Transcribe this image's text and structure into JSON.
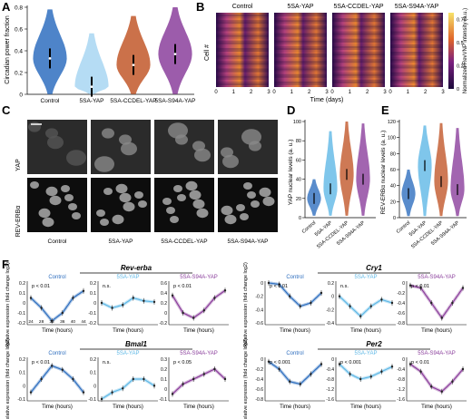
{
  "panels": {
    "A": {
      "letter": "A",
      "ylabel": "Circadian power fraction",
      "yticks": [
        "0",
        "0.2",
        "0.4",
        "0.6",
        "0.8"
      ],
      "groups": [
        "Control",
        "5SA-YAP",
        "5SA-CCDEL-YAP",
        "5SA-S94A-YAP"
      ],
      "colors": [
        "#2f6fbf",
        "#a8d6f2",
        "#c2582a",
        "#8b3f9c"
      ]
    },
    "B": {
      "letter": "B",
      "titles": [
        "Control",
        "5SA-YAP",
        "5SA-CCDEL-YAP",
        "5SA-S94A-YAP"
      ],
      "ylabel": "Cell #",
      "xlabel": "Time (days)",
      "xticks": [
        "0",
        "1",
        "2",
        "3"
      ],
      "colorbar_label": "Normalized RevVNP intensity (a.u.)",
      "colorbar_ticks": [
        "0",
        "0.25",
        "0.5",
        "0.75"
      ]
    },
    "C": {
      "letter": "C",
      "row_labels": [
        "YAP",
        "REV-ERBα"
      ],
      "col_labels": [
        "Control",
        "5SA-YAP",
        "5SA-CCDEL-YAP",
        "5SA-S94A-YAP"
      ]
    },
    "D": {
      "letter": "D",
      "ylabel": "YAP nuclear levels (a. u.)",
      "yticks": [
        "0",
        "20",
        "40",
        "60",
        "80",
        "100"
      ],
      "groups": [
        "Control",
        "5SA-YAP",
        "5SA-CCDEL-YAP",
        "5SA-S94A-YAP"
      ]
    },
    "E": {
      "letter": "E",
      "ylabel": "REV-ERBα nuclear levels (a. u.)",
      "yticks": [
        "0",
        "20",
        "40",
        "60",
        "80",
        "100",
        "120"
      ],
      "groups": [
        "Control",
        "5SA-YAP",
        "5SA-CCDEL-YAP",
        "5SA-S94A-YAP"
      ]
    },
    "F": {
      "letter": "F",
      "xlabel": "Time (hours)",
      "ylabel": "Relative expression (fold change log2)",
      "xticks_first": [
        "24",
        "28",
        "32",
        "36",
        "40",
        "44"
      ],
      "genes": [
        {
          "name": "Rev-erba",
          "panels": [
            {
              "title": "Control",
              "pvalue": "p < 0.01",
              "yticks": [
                "0.2",
                "0.1",
                "0",
                "-0.1",
                "-0.2"
              ]
            },
            {
              "title": "5SA-YAP",
              "pvalue": "n.s.",
              "yticks": [
                "0.2",
                "0.1",
                "0",
                "-0.1",
                "-0.2"
              ]
            },
            {
              "title": "5SA-S94A-YAP",
              "pvalue": "p < 0.01",
              "yticks": [
                "0.6",
                "0.4",
                "0.2",
                "0",
                "-0.2"
              ]
            }
          ]
        },
        {
          "name": "Cry1",
          "panels": [
            {
              "title": "Control",
              "pvalue": "p < 0.01",
              "yticks": [
                "0",
                "-0.2",
                "-0.4",
                "-0.6"
              ]
            },
            {
              "title": "5SA-YAP",
              "pvalue": "n.s.",
              "yticks": [
                "0.2",
                "0",
                "-0.2",
                "-0.4"
              ]
            },
            {
              "title": "5SA-S94A-YAP",
              "pvalue": "p < 0.01",
              "yticks": [
                "0",
                "-0.2",
                "-0.4",
                "-0.6",
                "-0.8"
              ]
            }
          ]
        },
        {
          "name": "Bmal1",
          "panels": [
            {
              "title": "Control",
              "pvalue": "p < 0.01",
              "yticks": [
                "0.2",
                "0.1",
                "0",
                "-0.1"
              ]
            },
            {
              "title": "5SA-YAP",
              "pvalue": "n.s.",
              "yticks": [
                "0.2",
                "0.1",
                "0",
                "-0.1"
              ]
            },
            {
              "title": "5SA-S94A-YAP",
              "pvalue": "p < 0.05",
              "yticks": [
                "0.3",
                "0.2",
                "0.1",
                "0",
                "-0.1"
              ]
            }
          ]
        },
        {
          "name": "Per2",
          "panels": [
            {
              "title": "Control",
              "pvalue": "p < 0.001",
              "yticks": [
                "0",
                "-0.2",
                "-0.4",
                "-0.6",
                "-0.8"
              ]
            },
            {
              "title": "5SA-YAP",
              "pvalue": "p < 0.001",
              "yticks": [
                "0",
                "-0.4",
                "-0.8",
                "-1.2",
                "-1.6"
              ]
            },
            {
              "title": "5SA-S94A-YAP",
              "pvalue": "p < 0.01",
              "yticks": [
                "0",
                "-0.4",
                "-0.8",
                "-1.2",
                "-1.6"
              ]
            }
          ]
        }
      ]
    }
  },
  "colors": {
    "control": "#2f6fbf",
    "yap5sa": "#5fb8e6",
    "ccdel": "#c2582a",
    "s94a": "#8b3f9c"
  },
  "chart_data": [
    {
      "type": "violin",
      "panel": "A",
      "categories": [
        "Control",
        "5SA-YAP",
        "5SA-CCDEL-YAP",
        "5SA-S94A-YAP"
      ],
      "medians": [
        0.33,
        0.07,
        0.27,
        0.37
      ],
      "ylim": [
        0,
        0.8
      ],
      "ylabel": "Circadian power fraction"
    },
    {
      "type": "violin",
      "panel": "D",
      "categories": [
        "Control",
        "5SA-YAP",
        "5SA-CCDEL-YAP",
        "5SA-S94A-YAP"
      ],
      "medians": [
        20,
        30,
        45,
        40
      ],
      "ylim": [
        0,
        100
      ],
      "ylabel": "YAP nuclear levels (a. u.)"
    },
    {
      "type": "violin",
      "panel": "E",
      "categories": [
        "Control",
        "5SA-YAP",
        "5SA-CCDEL-YAP",
        "5SA-S94A-YAP"
      ],
      "medians": [
        30,
        65,
        45,
        35
      ],
      "ylim": [
        0,
        120
      ],
      "ylabel": "REV-ERBα nuclear levels (a. u.)"
    },
    {
      "type": "line",
      "panel": "F",
      "x": [
        24,
        28,
        32,
        36,
        40,
        44
      ],
      "series": [
        {
          "name": "Rev-erba Control",
          "values": [
            0.05,
            -0.05,
            -0.18,
            -0.1,
            0.05,
            0.12
          ]
        },
        {
          "name": "Rev-erba 5SA-YAP",
          "values": [
            0.0,
            -0.05,
            -0.02,
            0.05,
            0.02,
            0.01
          ]
        },
        {
          "name": "Rev-erba 5SA-S94A-YAP",
          "values": [
            0.35,
            0.0,
            -0.1,
            0.05,
            0.3,
            0.45
          ]
        },
        {
          "name": "Cry1 Control",
          "values": [
            0.0,
            -0.02,
            -0.2,
            -0.35,
            -0.3,
            -0.15
          ]
        },
        {
          "name": "Cry1 5SA-YAP",
          "values": [
            0.0,
            -0.15,
            -0.3,
            -0.15,
            -0.05,
            -0.1
          ]
        },
        {
          "name": "Cry1 5SA-S94A-YAP",
          "values": [
            -0.05,
            -0.1,
            -0.4,
            -0.7,
            -0.4,
            -0.1
          ]
        },
        {
          "name": "Bmal1 Control",
          "values": [
            -0.05,
            0.05,
            0.15,
            0.12,
            0.05,
            -0.05
          ]
        },
        {
          "name": "Bmal1 5SA-YAP",
          "values": [
            -0.1,
            -0.05,
            -0.02,
            0.05,
            0.05,
            0.0
          ]
        },
        {
          "name": "Bmal1 5SA-S94A-YAP",
          "values": [
            -0.05,
            0.05,
            0.1,
            0.15,
            0.2,
            0.1
          ]
        },
        {
          "name": "Per2 Control",
          "values": [
            -0.05,
            -0.2,
            -0.45,
            -0.5,
            -0.3,
            -0.1
          ]
        },
        {
          "name": "Per2 5SA-YAP",
          "values": [
            -0.2,
            -0.6,
            -0.8,
            -0.7,
            -0.5,
            -0.3
          ]
        },
        {
          "name": "Per2 5SA-S94A-YAP",
          "values": [
            -0.2,
            -0.5,
            -1.1,
            -1.3,
            -0.9,
            -0.4
          ]
        }
      ],
      "xlabel": "Time (hours)",
      "ylabel": "Relative expression (fold change log2)"
    }
  ]
}
